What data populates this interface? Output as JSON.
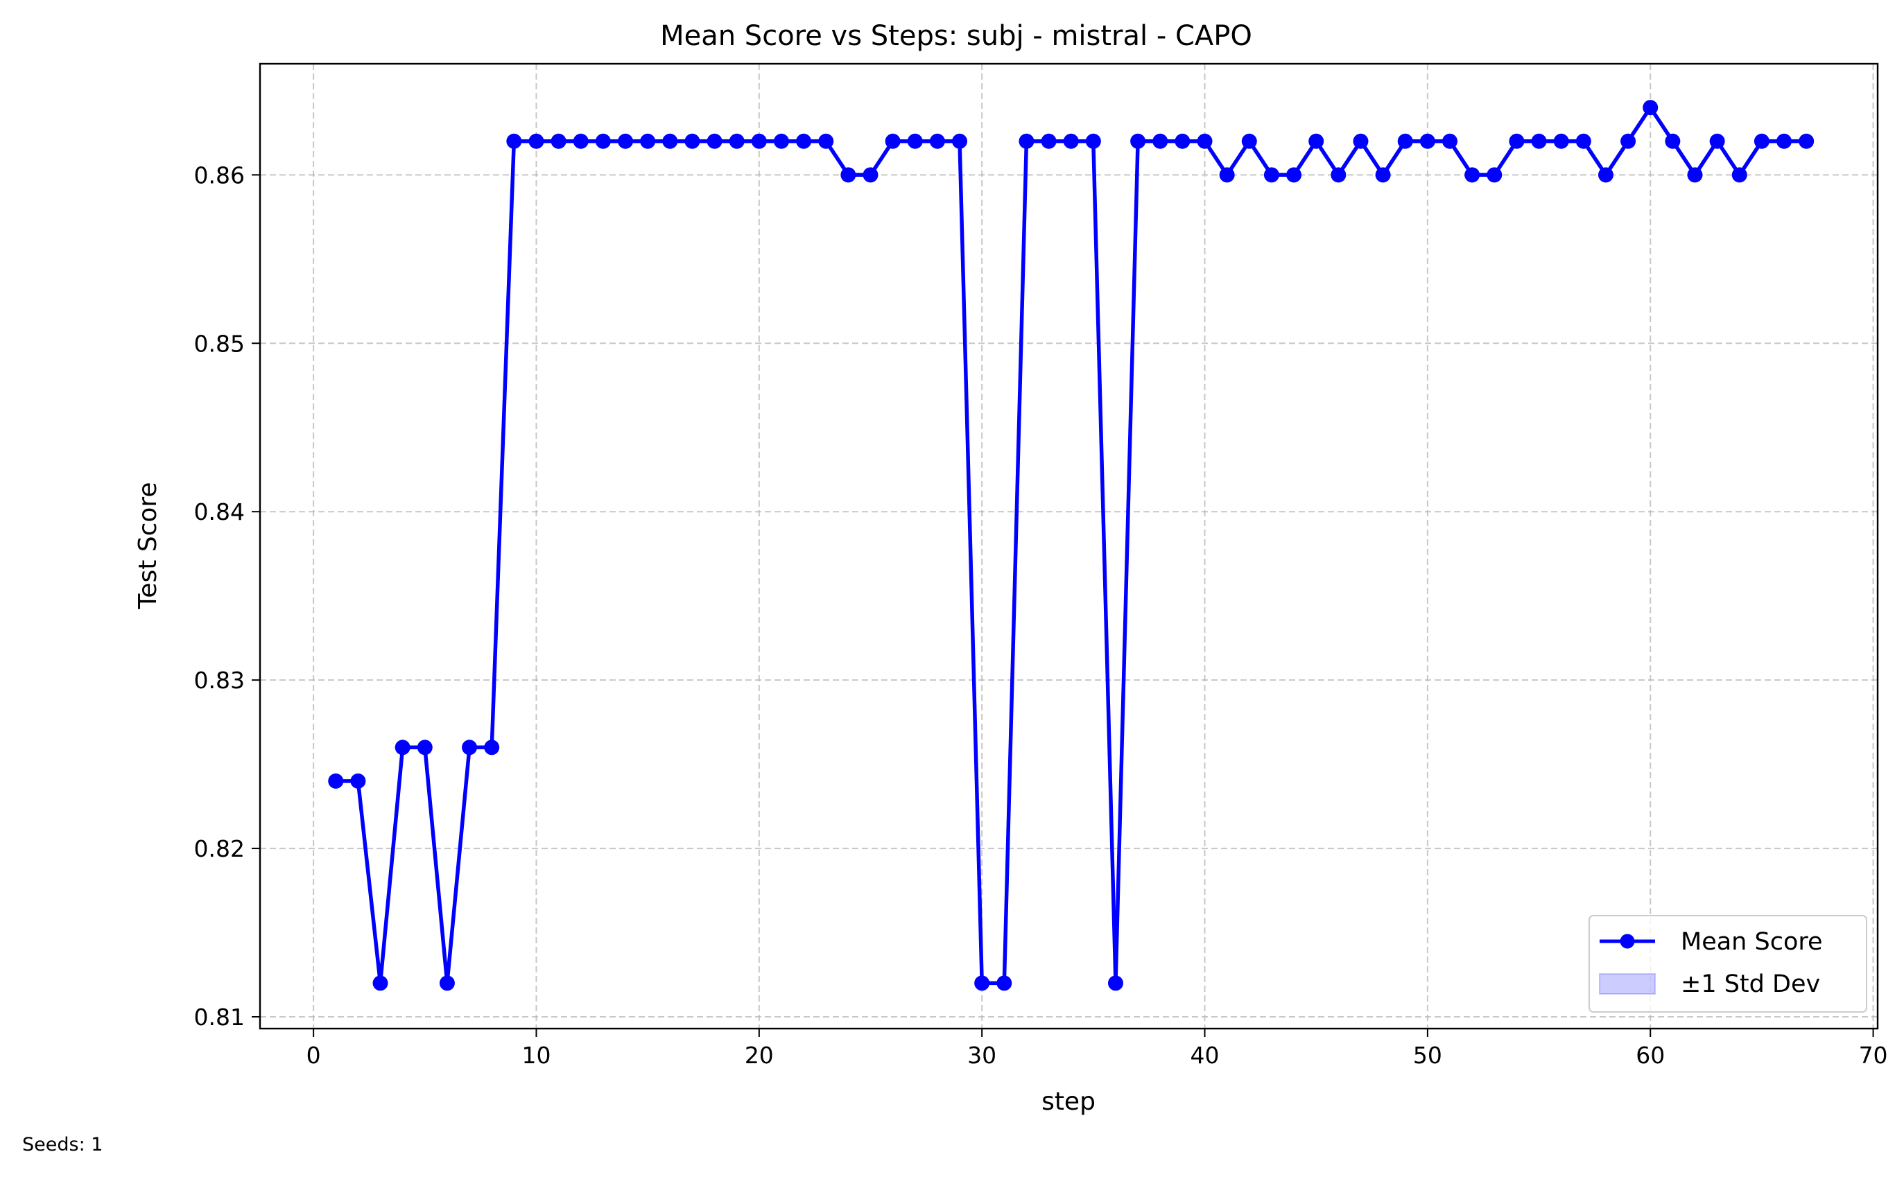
{
  "chart_data": {
    "type": "line",
    "title": "Mean Score vs Steps: subj - mistral - CAPO",
    "xlabel": "step",
    "ylabel": "Test Score",
    "xlim": [
      -2.4,
      70.2
    ],
    "ylim": [
      0.8093,
      0.8666
    ],
    "xticks": [
      0,
      10,
      20,
      30,
      40,
      50,
      60,
      70
    ],
    "yticks": [
      0.81,
      0.82,
      0.83,
      0.84,
      0.85,
      0.86
    ],
    "xtick_labels": [
      "0",
      "10",
      "20",
      "30",
      "40",
      "50",
      "60",
      "70"
    ],
    "ytick_labels": [
      "0.81",
      "0.82",
      "0.83",
      "0.84",
      "0.85",
      "0.86"
    ],
    "grid": true,
    "legend_position": "lower-right",
    "series": [
      {
        "name": "Mean Score",
        "color": "#0000ff",
        "marker": "circle",
        "x": [
          1,
          2,
          3,
          4,
          5,
          6,
          7,
          8,
          9,
          10,
          11,
          12,
          13,
          14,
          15,
          16,
          17,
          18,
          19,
          20,
          21,
          22,
          23,
          24,
          25,
          26,
          27,
          28,
          29,
          30,
          31,
          32,
          33,
          34,
          35,
          36,
          37,
          38,
          39,
          40,
          41,
          42,
          43,
          44,
          45,
          46,
          47,
          48,
          49,
          50,
          51,
          52,
          53,
          54,
          55,
          56,
          57,
          58,
          59,
          60,
          61,
          62,
          63,
          64,
          65,
          66,
          67
        ],
        "y": [
          0.824,
          0.824,
          0.812,
          0.826,
          0.826,
          0.812,
          0.826,
          0.826,
          0.862,
          0.862,
          0.862,
          0.862,
          0.862,
          0.862,
          0.862,
          0.862,
          0.862,
          0.862,
          0.862,
          0.862,
          0.862,
          0.862,
          0.862,
          0.86,
          0.86,
          0.862,
          0.862,
          0.862,
          0.862,
          0.812,
          0.812,
          0.862,
          0.862,
          0.862,
          0.862,
          0.812,
          0.862,
          0.862,
          0.862,
          0.862,
          0.86,
          0.862,
          0.86,
          0.86,
          0.862,
          0.86,
          0.862,
          0.86,
          0.862,
          0.862,
          0.862,
          0.86,
          0.86,
          0.862,
          0.862,
          0.862,
          0.862,
          0.86,
          0.862,
          0.864,
          0.862,
          0.86,
          0.862,
          0.86,
          0.862,
          0.862,
          0.862
        ]
      }
    ],
    "legend": [
      {
        "label": "Mean Score",
        "kind": "line-marker",
        "color": "#0000ff"
      },
      {
        "label": "±1 Std Dev",
        "kind": "patch",
        "color": "#0000ff"
      }
    ],
    "footnote": "Seeds: 1"
  }
}
